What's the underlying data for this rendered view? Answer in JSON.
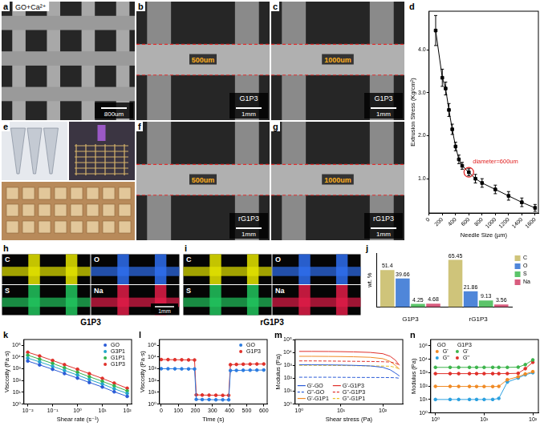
{
  "figure": {
    "image_panels": [
      {
        "panel": "a",
        "kind": "lattice",
        "label": "GO+Ca²⁺",
        "scale_bar": "800um"
      },
      {
        "panel": "b",
        "kind": "filament",
        "annotation": "500um",
        "sample": "G1P3",
        "scale_bar": "1mm"
      },
      {
        "panel": "c",
        "kind": "filament",
        "annotation": "1000um",
        "sample": "G1P3",
        "scale_bar": "1mm"
      },
      {
        "panel": "e",
        "kind": "photo"
      },
      {
        "panel": "f",
        "kind": "filament",
        "annotation": "500um",
        "sample": "rG1P3",
        "scale_bar": "1mm"
      },
      {
        "panel": "g",
        "kind": "filament",
        "annotation": "1000um",
        "sample": "rG1P3",
        "scale_bar": "1mm"
      }
    ],
    "eds_maps": [
      {
        "panel": "h",
        "sample": "G1P3",
        "elements": [
          "C",
          "O",
          "S",
          "Na"
        ],
        "colors": [
          "#e6e600",
          "#2f6ff0",
          "#22c55e",
          "#e11d48"
        ],
        "scale_bar": "1mm"
      },
      {
        "panel": "i",
        "sample": "rG1P3",
        "elements": [
          "C",
          "O",
          "S",
          "Na"
        ],
        "colors": [
          "#e6e600",
          "#2f6ff0",
          "#22c55e",
          "#e11d48"
        ]
      }
    ]
  },
  "chart_data": [
    {
      "panel": "d",
      "type": "line",
      "x_label": "Needle Size (µm)",
      "y_label": "Extrusion Stress (Kg/cm²)",
      "x": [
        100,
        200,
        250,
        300,
        350,
        400,
        450,
        500,
        600,
        700,
        800,
        1000,
        1200,
        1400,
        1600
      ],
      "values": [
        4.45,
        3.35,
        3.1,
        2.6,
        2.15,
        1.75,
        1.45,
        1.3,
        1.15,
        1.0,
        0.9,
        0.75,
        0.6,
        0.45,
        0.32
      ],
      "errors": [
        0.35,
        0.2,
        0.15,
        0.15,
        0.12,
        0.1,
        0.1,
        0.08,
        0.08,
        0.1,
        0.1,
        0.1,
        0.1,
        0.1,
        0.08
      ],
      "color": "#000000",
      "marker": "square",
      "line_style": "solid",
      "xlim": [
        0,
        1650
      ],
      "xticks": [
        0,
        200,
        400,
        600,
        800,
        1000,
        1200,
        1400,
        1600
      ],
      "ylim": [
        0.2,
        4.9
      ],
      "yticks": [
        {
          "value": 1,
          "label": "1.0"
        },
        {
          "value": 2,
          "label": "2.0"
        },
        {
          "value": 3,
          "label": "3.0"
        },
        {
          "value": 4,
          "label": "4.0"
        }
      ],
      "grid": false,
      "annotations": [
        {
          "text": "diameter=600um",
          "x": 600,
          "color": "#e02020"
        }
      ]
    },
    {
      "panel": "j",
      "type": "bar",
      "y_label": "wt. %",
      "categories": [
        "G1P3",
        "rG1P3"
      ],
      "series": [
        {
          "name": "C",
          "color": "#cfc47a",
          "values": [
            51.4,
            65.45
          ]
        },
        {
          "name": "O",
          "color": "#4f86d9",
          "values": [
            39.66,
            21.86
          ]
        },
        {
          "name": "S",
          "color": "#5cc46a",
          "values": [
            4.25,
            9.13
          ]
        },
        {
          "name": "Na",
          "color": "#d85c7e",
          "values": [
            4.68,
            3.56
          ]
        }
      ],
      "ylim": [
        0,
        75
      ],
      "data_labels": true,
      "tick_labels": "x",
      "legend": "right",
      "grid": false
    },
    {
      "panel": "k",
      "type": "line",
      "log": true,
      "x_label": "Shear rate (s⁻¹)",
      "y_label": "Viscosity (Pa·s)",
      "x": [
        0.01,
        0.03,
        0.1,
        0.3,
        1,
        3,
        10,
        30,
        100
      ],
      "series": [
        {
          "name": "GO",
          "color": "#2a5bd7",
          "values": [
            4500,
            2100,
            900,
            390,
            160,
            68,
            28,
            11,
            4.5
          ]
        },
        {
          "name": "G3P1",
          "color": "#22a6c9",
          "values": [
            8000,
            3800,
            1600,
            700,
            290,
            120,
            50,
            20,
            8
          ]
        },
        {
          "name": "G1P1",
          "color": "#34b34a",
          "values": [
            14000,
            6500,
            2800,
            1200,
            500,
            210,
            85,
            35,
            13
          ]
        },
        {
          "name": "G1P3",
          "color": "#e0302a",
          "values": [
            25000,
            12000,
            5000,
            2200,
            900,
            380,
            150,
            60,
            22
          ]
        }
      ],
      "marker": "circle",
      "line_style": "solid",
      "xlim": [
        0.007,
        150
      ],
      "xticks": [
        {
          "value": 0.01,
          "label": "10⁻²"
        },
        {
          "value": 0.1,
          "label": "10⁻¹"
        },
        {
          "value": 1,
          "label": "10⁰"
        },
        {
          "value": 10,
          "label": "10¹"
        },
        {
          "value": 100,
          "label": "10²"
        }
      ],
      "ylim": [
        1,
        300000
      ],
      "yticks": [
        {
          "value": 1,
          "label": "10⁰"
        },
        {
          "value": 10,
          "label": "10¹"
        },
        {
          "value": 100,
          "label": "10²"
        },
        {
          "value": 1000,
          "label": "10³"
        },
        {
          "value": 10000,
          "label": "10⁴"
        },
        {
          "value": 100000,
          "label": "10⁵"
        }
      ],
      "legend": "top-right",
      "grid": false
    },
    {
      "panel": "l",
      "type": "line",
      "log": "y",
      "x_label": "Time (s)",
      "y_label": "Viscosity (Pa·s)",
      "x": [
        0,
        40,
        80,
        120,
        160,
        195,
        205,
        240,
        280,
        320,
        360,
        395,
        405,
        440,
        480,
        520,
        560,
        600
      ],
      "series": [
        {
          "name": "GO",
          "color": "#2a7be0",
          "values": [
            1000,
            990,
            980,
            970,
            960,
            950,
            2.5,
            2.4,
            2.4,
            2.3,
            2.3,
            2.3,
            700,
            720,
            740,
            750,
            760,
            770
          ]
        },
        {
          "name": "G1P3",
          "color": "#e0302a",
          "values": [
            6000,
            5900,
            5800,
            5700,
            5600,
            5500,
            6,
            5.8,
            5.7,
            5.6,
            5.5,
            5.5,
            2200,
            2300,
            2400,
            2450,
            2500,
            2500
          ]
        }
      ],
      "marker": "circle",
      "line_style": "solid",
      "xlim": [
        -10,
        620
      ],
      "xticks": [
        0,
        100,
        200,
        300,
        400,
        500,
        600
      ],
      "ylim": [
        1,
        300000
      ],
      "yticks": [
        {
          "value": 1,
          "label": "10⁰"
        },
        {
          "value": 10,
          "label": "10¹"
        },
        {
          "value": 100,
          "label": "10²"
        },
        {
          "value": 1000,
          "label": "10³"
        },
        {
          "value": 10000,
          "label": "10⁴"
        },
        {
          "value": 100000,
          "label": "10⁵"
        }
      ],
      "legend": "top-right",
      "grid": false
    },
    {
      "panel": "m",
      "type": "line",
      "log": true,
      "x_label": "Shear stress (Pa)",
      "y_label": "Modulus (Pa)",
      "x": [
        1,
        2,
        5,
        10,
        20,
        50,
        100,
        150,
        200,
        250
      ],
      "series": [
        {
          "name": "G'-GO",
          "color": "#2a5bd7",
          "line_style": "solid",
          "values": [
            1100,
            1100,
            1080,
            1050,
            1000,
            900,
            700,
            450,
            250,
            150
          ]
        },
        {
          "name": "G'-G1P3",
          "color": "#e0302a",
          "line_style": "solid",
          "values": [
            12000,
            12000,
            11800,
            11500,
            11000,
            10000,
            8000,
            5000,
            2500,
            1000
          ]
        },
        {
          "name": "G''-GO",
          "color": "#2a5bd7",
          "line_style": "dashed",
          "values": [
            120,
            120,
            120,
            118,
            116,
            115,
            114,
            112,
            110,
            100
          ]
        },
        {
          "name": "G''-G1P3",
          "color": "#e0302a",
          "line_style": "dashed",
          "values": [
            2200,
            2200,
            2150,
            2100,
            2050,
            2000,
            1900,
            1800,
            1500,
            1000
          ]
        },
        {
          "name": "G'-G1P1",
          "color": "#f08a24",
          "line_style": "solid",
          "values": [
            5000,
            5000,
            4900,
            4800,
            4600,
            4200,
            3300,
            2000,
            1000,
            500
          ]
        },
        {
          "name": "G''-G1P1",
          "color": "#e8c020",
          "line_style": "dashed",
          "values": [
            1000,
            1000,
            980,
            960,
            940,
            900,
            880,
            850,
            700,
            500
          ]
        }
      ],
      "xlim": [
        0.8,
        300
      ],
      "xticks": [
        {
          "value": 1,
          "label": "10⁰"
        },
        {
          "value": 10,
          "label": "10¹"
        },
        {
          "value": 100,
          "label": "10²"
        }
      ],
      "ylim": [
        1,
        100000
      ],
      "yticks": [
        {
          "value": 1,
          "label": "10⁰"
        },
        {
          "value": 10,
          "label": "10¹"
        },
        {
          "value": 100,
          "label": "10²"
        },
        {
          "value": 1000,
          "label": "10³"
        },
        {
          "value": 10000,
          "label": "10⁴"
        },
        {
          "value": 100000,
          "label": "10⁵"
        }
      ],
      "legend": "bottom-left",
      "grid": false
    },
    {
      "panel": "n",
      "type": "line",
      "log": true,
      "y_label": "Modulus (Pa)",
      "x": [
        1,
        2,
        3,
        5,
        7,
        10,
        15,
        20,
        30,
        50,
        70,
        100
      ],
      "series": [
        {
          "name": "G'",
          "group": "GO",
          "color": "#f08a24",
          "values": [
            95,
            95,
            94,
            94,
            93,
            93,
            92,
            95,
            300,
            500,
            800,
            1200
          ]
        },
        {
          "name": "G''",
          "group": "GO",
          "color": "#2aa0e0",
          "values": [
            10,
            10,
            10,
            10,
            10,
            10,
            10,
            12,
            200,
            400,
            700,
            1000
          ]
        },
        {
          "name": "G'",
          "group": "G1P3",
          "color": "#3cb44b",
          "values": [
            2500,
            2500,
            2500,
            2500,
            2500,
            2500,
            2500,
            2500,
            2500,
            2600,
            4000,
            9000
          ]
        },
        {
          "name": "G''",
          "group": "G1P3",
          "color": "#e0302a",
          "values": [
            850,
            850,
            850,
            850,
            850,
            850,
            850,
            850,
            860,
            900,
            2000,
            6000
          ]
        }
      ],
      "marker": "circle",
      "line_style": "solid",
      "xlim": [
        0.8,
        130
      ],
      "xticks": [
        {
          "value": 1,
          "label": "10⁰"
        },
        {
          "value": 10,
          "label": "10¹"
        },
        {
          "value": 100,
          "label": "10²"
        }
      ],
      "ylim": [
        1,
        300000
      ],
      "yticks": [
        {
          "value": 1,
          "label": "10⁰"
        },
        {
          "value": 10,
          "label": "10¹"
        },
        {
          "value": 100,
          "label": "10²"
        },
        {
          "value": 1000,
          "label": "10³"
        },
        {
          "value": 10000,
          "label": "10⁴"
        },
        {
          "value": 100000,
          "label": "10⁵"
        }
      ],
      "legend": "top-left",
      "grid": false
    }
  ]
}
